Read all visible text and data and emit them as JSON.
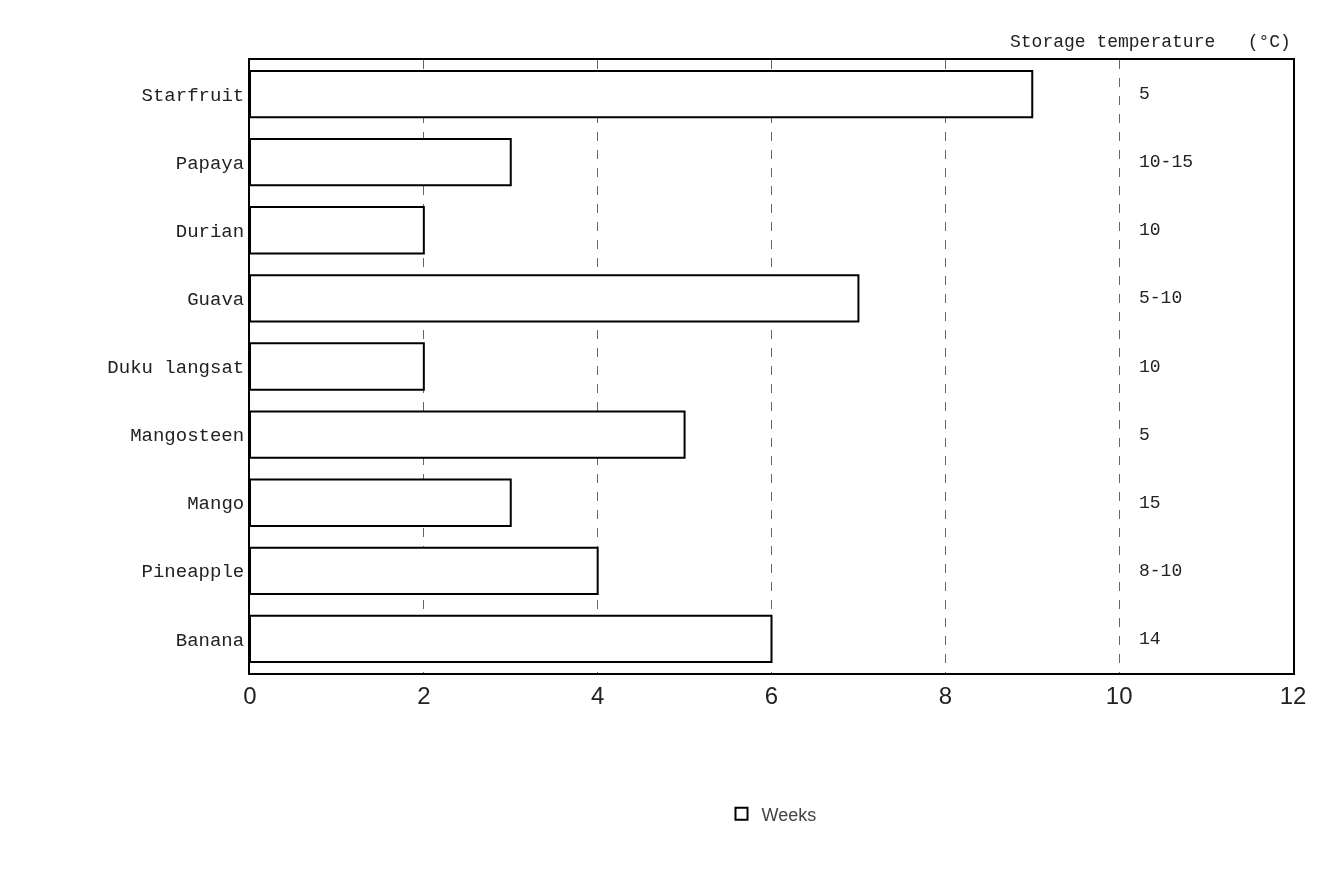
{
  "chart_data": {
    "type": "bar",
    "orientation": "horizontal",
    "categories": [
      "Starfruit",
      "Papaya",
      "Durian",
      "Guava",
      "Duku langsat",
      "Mangosteen",
      "Mango",
      "Pineapple",
      "Banana"
    ],
    "series": [
      {
        "name": "Weeks",
        "color": "#ffffff",
        "values": [
          9,
          3,
          2,
          7,
          2,
          5,
          3,
          4,
          6
        ]
      }
    ],
    "xlim": [
      0,
      12
    ],
    "xticks": [
      0,
      2,
      4,
      6,
      8,
      10,
      12
    ],
    "grid": "x",
    "legend": "bottom",
    "annotations": [
      "Storage temperature   (°C)",
      "5",
      "10-15",
      "10",
      "5-10",
      "10",
      "5",
      "15",
      "8-10",
      "14"
    ]
  }
}
